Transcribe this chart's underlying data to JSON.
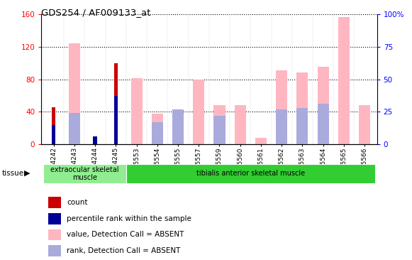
{
  "title": "GDS254 / AF009133_at",
  "samples": [
    "GSM4242",
    "GSM4243",
    "GSM4244",
    "GSM4245",
    "GSM5553",
    "GSM5554",
    "GSM5555",
    "GSM5557",
    "GSM5559",
    "GSM5560",
    "GSM5561",
    "GSM5562",
    "GSM5563",
    "GSM5564",
    "GSM5565",
    "GSM5566"
  ],
  "count": [
    46,
    0,
    0,
    100,
    0,
    0,
    0,
    0,
    0,
    0,
    0,
    0,
    0,
    0,
    0,
    0
  ],
  "percentile_rank": [
    15,
    0,
    6,
    37,
    0,
    0,
    0,
    0,
    0,
    0,
    0,
    0,
    0,
    0,
    0,
    0
  ],
  "value_absent": [
    0,
    124,
    0,
    0,
    81,
    38,
    0,
    80,
    48,
    48,
    8,
    91,
    88,
    95,
    157,
    48
  ],
  "rank_absent": [
    0,
    24,
    0,
    0,
    0,
    17,
    27,
    0,
    22,
    0,
    0,
    27,
    28,
    31,
    0,
    0
  ],
  "tissue_groups": [
    {
      "label": "extraocular skeletal\nmuscle",
      "start": 0,
      "end": 4,
      "color": "#90EE90"
    },
    {
      "label": "tibialis anterior skeletal muscle",
      "start": 4,
      "end": 16,
      "color": "#32CD32"
    }
  ],
  "ylim_left": [
    0,
    160
  ],
  "ylim_right": [
    0,
    100
  ],
  "yticks_left": [
    0,
    40,
    80,
    120,
    160
  ],
  "yticks_right": [
    0,
    25,
    50,
    75,
    100
  ],
  "yticklabels_right": [
    "0",
    "25",
    "50",
    "75",
    "100%"
  ],
  "color_count": "#CC0000",
  "color_rank": "#000099",
  "color_value_absent": "#FFB6C1",
  "color_rank_absent": "#AAAADD",
  "legend_items": [
    "count",
    "percentile rank within the sample",
    "value, Detection Call = ABSENT",
    "rank, Detection Call = ABSENT"
  ],
  "legend_colors": [
    "#CC0000",
    "#000099",
    "#FFB6C1",
    "#AAAADD"
  ]
}
